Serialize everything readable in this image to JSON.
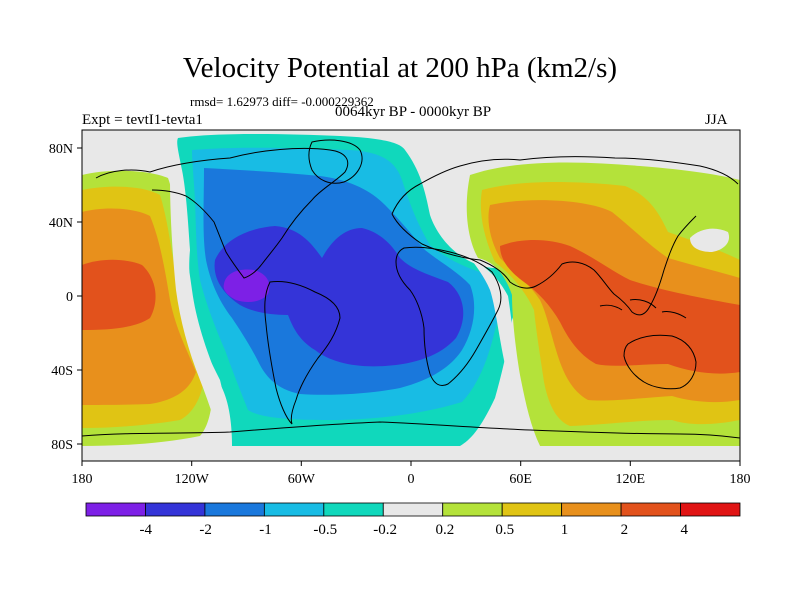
{
  "title": "Velocity Potential at 200 hPa (km2/s)",
  "subtitle_stats": "rmsd= 1.62973 diff= -0.000229362",
  "experiment_label": "Expt = tevtI1-tevta1",
  "period_label": "0064kyr BP - 0000kyr BP",
  "season_label": "JJA",
  "axes": {
    "x_ticks": [
      "180",
      "120W",
      "60W",
      "0",
      "60E",
      "120E",
      "180"
    ],
    "y_ticks": [
      "80N",
      "40N",
      "0",
      "40S",
      "80S"
    ]
  },
  "colorbar": {
    "labels": [
      "-4",
      "-2",
      "-1",
      "-0.5",
      "-0.2",
      "0.2",
      "0.5",
      "1",
      "2",
      "4"
    ],
    "colors": [
      "#7d20e6",
      "#3434d8",
      "#1a78dc",
      "#18bce4",
      "#10d8bc",
      "#e8e8e8",
      "#b4e23a",
      "#e0c414",
      "#e8901c",
      "#e2521c",
      "#e01414"
    ]
  }
}
